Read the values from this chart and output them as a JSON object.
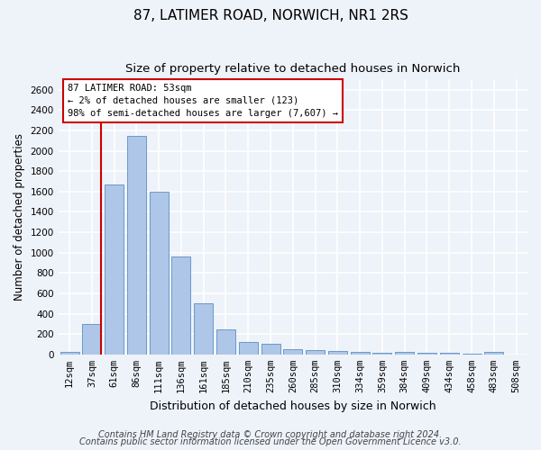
{
  "title1": "87, LATIMER ROAD, NORWICH, NR1 2RS",
  "title2": "Size of property relative to detached houses in Norwich",
  "xlabel": "Distribution of detached houses by size in Norwich",
  "ylabel": "Number of detached properties",
  "categories": [
    "12sqm",
    "37sqm",
    "61sqm",
    "86sqm",
    "111sqm",
    "136sqm",
    "161sqm",
    "185sqm",
    "210sqm",
    "235sqm",
    "260sqm",
    "285sqm",
    "310sqm",
    "334sqm",
    "359sqm",
    "384sqm",
    "409sqm",
    "434sqm",
    "458sqm",
    "483sqm",
    "508sqm"
  ],
  "values": [
    25,
    300,
    1670,
    2150,
    1595,
    960,
    505,
    250,
    120,
    100,
    50,
    42,
    35,
    22,
    20,
    22,
    20,
    20,
    5,
    25,
    0
  ],
  "bar_color": "#aec6e8",
  "bar_edge_color": "#5a8fc2",
  "annotation_text": "87 LATIMER ROAD: 53sqm\n← 2% of detached houses are smaller (123)\n98% of semi-detached houses are larger (7,607) →",
  "annotation_box_color": "#ffffff",
  "annotation_box_edge": "#cc0000",
  "vline_bar_index": 1,
  "ylim": [
    0,
    2700
  ],
  "yticks": [
    0,
    200,
    400,
    600,
    800,
    1000,
    1200,
    1400,
    1600,
    1800,
    2000,
    2200,
    2400,
    2600
  ],
  "footer1": "Contains HM Land Registry data © Crown copyright and database right 2024.",
  "footer2": "Contains public sector information licensed under the Open Government Licence v3.0.",
  "bg_color": "#eef2f9",
  "grid_color": "#ffffff",
  "title1_fontsize": 11,
  "title2_fontsize": 9.5,
  "ylabel_fontsize": 8.5,
  "xlabel_fontsize": 9,
  "tick_fontsize": 7.5,
  "annotation_fontsize": 7.5,
  "footer_fontsize": 7
}
